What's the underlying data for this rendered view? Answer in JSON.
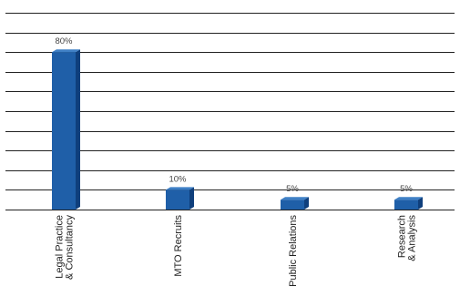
{
  "chart_data": {
    "type": "bar",
    "title": "",
    "xlabel": "",
    "ylabel": "",
    "categories": [
      [
        "Legal Practice",
        "& Consultancy"
      ],
      [
        "MTO Recruits"
      ],
      [
        "Public Relations"
      ],
      [
        "Research",
        "& Analysis"
      ]
    ],
    "values": [
      80,
      10,
      5,
      5
    ],
    "value_labels": [
      "80%",
      "10%",
      "5%",
      "5%"
    ],
    "ylim": [
      0,
      100
    ],
    "grid": true,
    "colors": {
      "bar": "#1f5fa8",
      "bar_side": "#0f3f7c",
      "bar_top": "#3f80c6",
      "grid": "#222222"
    }
  }
}
